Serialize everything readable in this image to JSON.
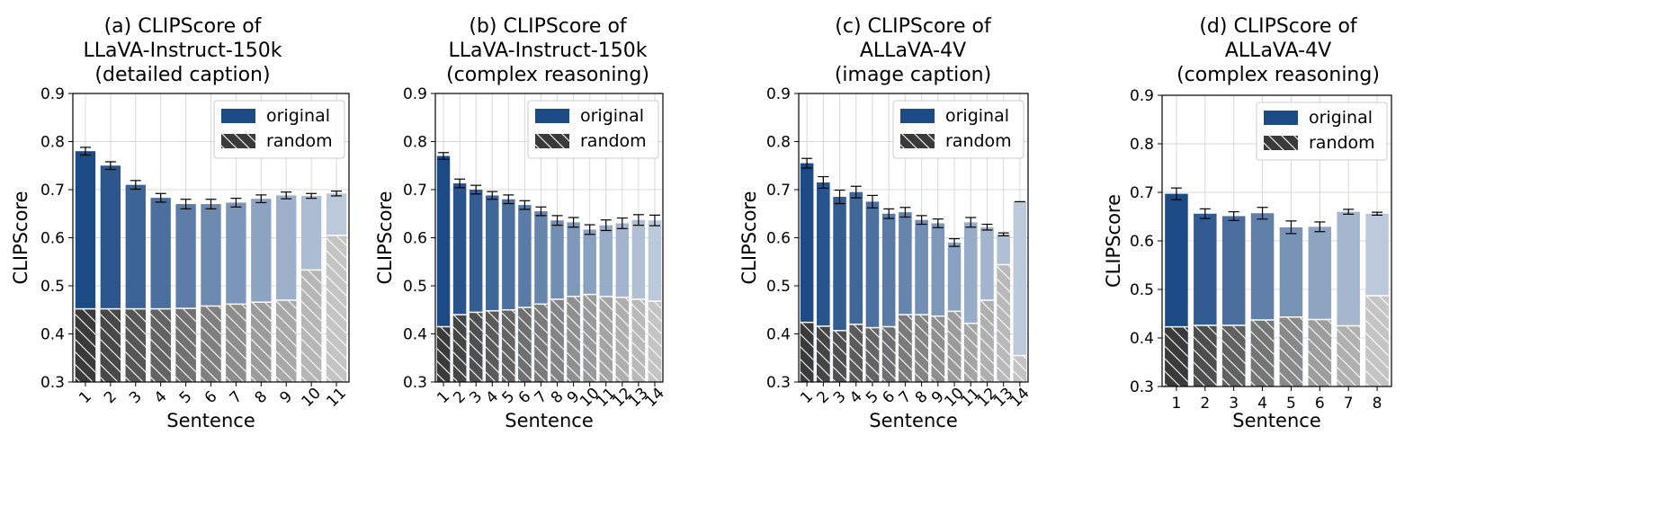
{
  "figure": {
    "colors": {
      "original_dark": "#1b4a85",
      "original_light": "#bcc9db",
      "random_dark": "#3a3a3a",
      "random_light": "#c4c4c4",
      "grid": "#d9d9d9",
      "axis": "#000000",
      "hatch": "#ffffff"
    }
  },
  "chart_data": [
    {
      "type": "bar",
      "title": [
        "(a) CLIPScore of",
        "LLaVA-Instruct-150k",
        "(detailed caption)"
      ],
      "xlabel": "Sentence",
      "ylabel": "CLIPScore",
      "ylim": [
        0.3,
        0.9
      ],
      "yticks": [
        "0.3",
        "0.4",
        "0.5",
        "0.6",
        "0.7",
        "0.8",
        "0.9"
      ],
      "grid": true,
      "legend": {
        "position": "top-right",
        "entries": [
          "original",
          "random"
        ]
      },
      "categories": [
        "1",
        "2",
        "3",
        "4",
        "5",
        "6",
        "7",
        "8",
        "9",
        "10",
        "11"
      ],
      "series": [
        {
          "name": "original",
          "values": [
            0.78,
            0.75,
            0.71,
            0.683,
            0.67,
            0.67,
            0.673,
            0.681,
            0.688,
            0.687,
            0.692
          ],
          "errors": [
            0.008,
            0.008,
            0.009,
            0.009,
            0.01,
            0.01,
            0.009,
            0.008,
            0.007,
            0.005,
            0.005
          ]
        },
        {
          "name": "random",
          "values": [
            0.452,
            0.452,
            0.452,
            0.452,
            0.453,
            0.458,
            0.462,
            0.466,
            0.47,
            0.533,
            0.605
          ]
        }
      ]
    },
    {
      "type": "bar",
      "title": [
        "(b) CLIPScore of",
        "LLaVA-Instruct-150k",
        "(complex reasoning)"
      ],
      "xlabel": "Sentence",
      "ylabel": "CLIPScore",
      "ylim": [
        0.3,
        0.9
      ],
      "yticks": [
        "0.3",
        "0.4",
        "0.5",
        "0.6",
        "0.7",
        "0.8",
        "0.9"
      ],
      "grid": true,
      "legend": {
        "position": "top-right",
        "entries": [
          "original",
          "random"
        ]
      },
      "categories": [
        "1",
        "2",
        "3",
        "4",
        "5",
        "6",
        "7",
        "8",
        "9",
        "10",
        "11",
        "12",
        "13",
        "14"
      ],
      "series": [
        {
          "name": "original",
          "values": [
            0.77,
            0.713,
            0.7,
            0.688,
            0.68,
            0.668,
            0.655,
            0.636,
            0.632,
            0.617,
            0.626,
            0.63,
            0.637,
            0.636
          ],
          "errors": [
            0.007,
            0.009,
            0.009,
            0.008,
            0.009,
            0.009,
            0.009,
            0.01,
            0.01,
            0.01,
            0.011,
            0.011,
            0.011,
            0.011
          ]
        },
        {
          "name": "random",
          "values": [
            0.415,
            0.44,
            0.445,
            0.448,
            0.45,
            0.455,
            0.462,
            0.472,
            0.478,
            0.482,
            0.478,
            0.476,
            0.472,
            0.468
          ]
        }
      ]
    },
    {
      "type": "bar",
      "title": [
        "(c) CLIPScore of",
        "ALLaVA-4V",
        "(image caption)"
      ],
      "xlabel": "Sentence",
      "ylabel": "CLIPScore",
      "ylim": [
        0.3,
        0.9
      ],
      "yticks": [
        "0.3",
        "0.4",
        "0.5",
        "0.6",
        "0.7",
        "0.8",
        "0.9"
      ],
      "grid": true,
      "legend": {
        "position": "top-right",
        "entries": [
          "original",
          "random"
        ]
      },
      "categories": [
        "1",
        "2",
        "3",
        "4",
        "5",
        "6",
        "7",
        "8",
        "9",
        "10",
        "11",
        "12",
        "13",
        "14"
      ],
      "series": [
        {
          "name": "original",
          "values": [
            0.755,
            0.715,
            0.685,
            0.695,
            0.675,
            0.65,
            0.653,
            0.637,
            0.63,
            0.59,
            0.632,
            0.622,
            0.607,
            0.675
          ],
          "errors": [
            0.01,
            0.012,
            0.014,
            0.012,
            0.013,
            0.01,
            0.01,
            0.009,
            0.009,
            0.008,
            0.01,
            0.006,
            0.003,
            0.0
          ]
        },
        {
          "name": "random",
          "values": [
            0.424,
            0.416,
            0.407,
            0.42,
            0.413,
            0.415,
            0.44,
            0.44,
            0.437,
            0.447,
            0.422,
            0.47,
            0.544,
            0.355
          ]
        }
      ]
    },
    {
      "type": "bar",
      "title": [
        "(d) CLIPScore of",
        "ALLaVA-4V",
        "(complex reasoning)"
      ],
      "xlabel": "Sentence",
      "ylabel": "CLIPScore",
      "ylim": [
        0.3,
        0.9
      ],
      "yticks": [
        "0.3",
        "0.4",
        "0.5",
        "0.6",
        "0.7",
        "0.8",
        "0.9"
      ],
      "grid": true,
      "legend": {
        "position": "top-right",
        "entries": [
          "original",
          "random"
        ]
      },
      "categories": [
        "1",
        "2",
        "3",
        "4",
        "5",
        "6",
        "7",
        "8"
      ],
      "series": [
        {
          "name": "original",
          "values": [
            0.697,
            0.656,
            0.651,
            0.657,
            0.628,
            0.629,
            0.66,
            0.656
          ],
          "errors": [
            0.012,
            0.01,
            0.009,
            0.012,
            0.013,
            0.01,
            0.005,
            0.003
          ]
        },
        {
          "name": "random",
          "values": [
            0.423,
            0.426,
            0.426,
            0.437,
            0.443,
            0.438,
            0.425,
            0.487
          ]
        }
      ]
    }
  ]
}
